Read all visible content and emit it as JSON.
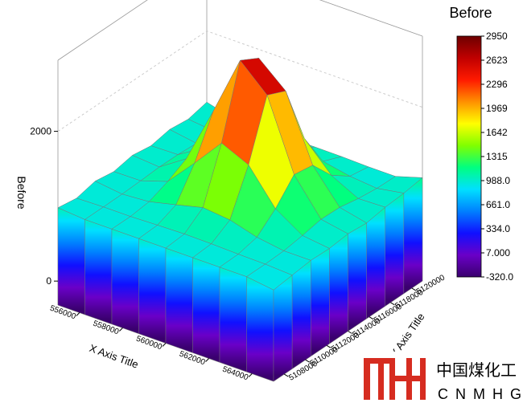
{
  "chart_data": {
    "type": "surface3d",
    "colorbar_title": "Before",
    "z_title": "Before",
    "x_title": "X Axis Title",
    "y_title": "Y Axis Title",
    "x": [
      555000,
      556250,
      557500,
      558750,
      560000,
      561250,
      562500,
      563750,
      565000
    ],
    "y": [
      5107000,
      5108750,
      5110500,
      5112250,
      5114000,
      5115750,
      5117500,
      5119250,
      5121000
    ],
    "z": [
      [
        980,
        940,
        1000,
        960,
        1010,
        970,
        1020,
        990,
        1050
      ],
      [
        950,
        950,
        954,
        965,
        981,
        979,
        962,
        950,
        950
      ],
      [
        950,
        950,
        980,
        1082,
        1218,
        1198,
        1054,
        970,
        950
      ],
      [
        950,
        962,
        1066,
        1456,
        1980,
        1904,
        1350,
        1028,
        957
      ],
      [
        950,
        971,
        1156,
        1850,
        2787,
        2650,
        1670,
        1088,
        962
      ],
      [
        950,
        967,
        1118,
        1686,
        2450,
        2338,
        1538,
        1063,
        960
      ],
      [
        950,
        956,
        1014,
        1228,
        1516,
        1474,
        1172,
        992,
        950
      ],
      [
        950,
        950,
        960,
        997,
        1046,
        1038,
        988,
        957,
        950
      ],
      [
        900,
        930,
        960,
        952,
        980,
        957,
        1000,
        1020,
        1060
      ]
    ],
    "xlim": [
      555000,
      565000
    ],
    "ylim": [
      5107000,
      5121000
    ],
    "zlim": [
      -320,
      2950
    ],
    "xticks": [
      556000,
      558000,
      560000,
      562000,
      564000
    ],
    "yticks": [
      5108000,
      5110000,
      5112000,
      5114000,
      5116000,
      5118000,
      5120000
    ],
    "zticks": [
      0,
      2000
    ],
    "colorbar_ticks": [
      2950,
      2623,
      2296,
      1969,
      1642,
      1315,
      {
        "value": 988,
        "label": "988.0"
      },
      {
        "value": 661,
        "label": "661.0"
      },
      {
        "value": 334,
        "label": "334.0"
      },
      {
        "value": 7,
        "label": "7.000"
      },
      {
        "value": -320,
        "label": "-320.0"
      }
    ],
    "colormap": [
      "#3a006e",
      "#6a00c8",
      "#1010ff",
      "#0080ff",
      "#00e0ff",
      "#00ff80",
      "#80ff00",
      "#ffff00",
      "#ff9000",
      "#ff1a00",
      "#c00000",
      "#6e0000"
    ],
    "grid": true
  },
  "logo": {
    "name": "中国煤化工",
    "letters": "CNMHG"
  }
}
